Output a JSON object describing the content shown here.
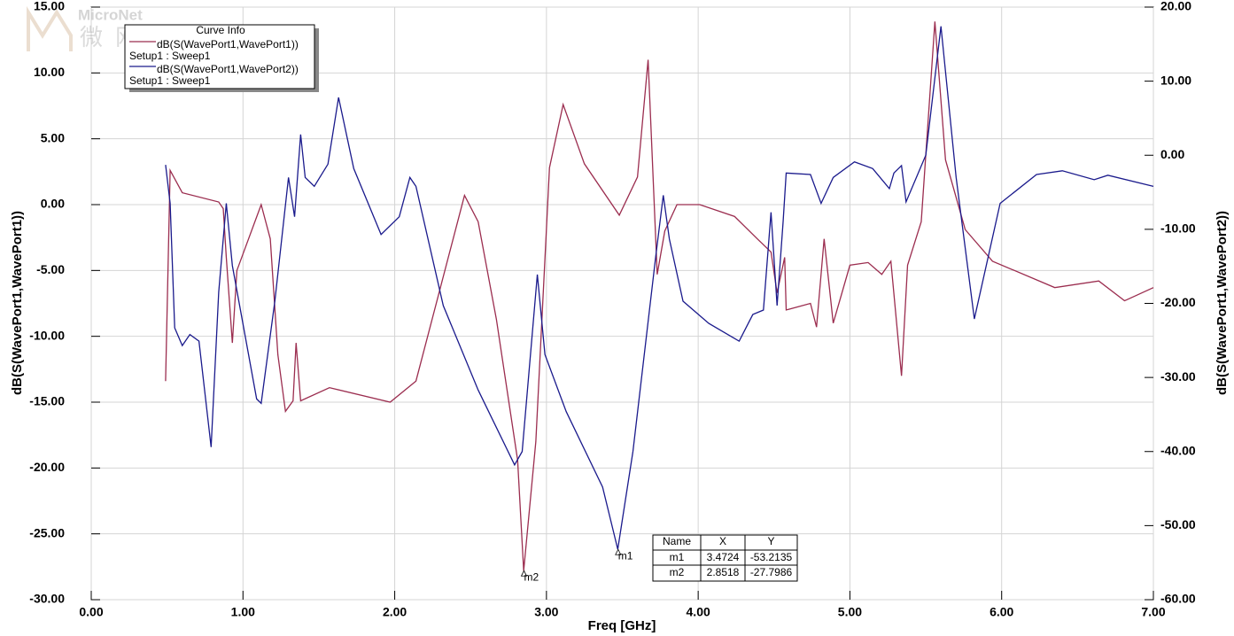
{
  "chart_data": {
    "type": "line",
    "watermark": "MicroNet",
    "watermark_cn": "微网",
    "legend_title": "Curve Info",
    "xlabel": "Freq [GHz]",
    "ylabel": "dB(S(WavePort1,WavePort1))",
    "y2label": "dB(S(WavePort1,WavePort2))",
    "xlim": [
      0,
      7
    ],
    "xticks": [
      {
        "value": 0,
        "label": "0.00"
      },
      {
        "value": 1,
        "label": "1.00"
      },
      {
        "value": 2,
        "label": "2.00"
      },
      {
        "value": 3,
        "label": "3.00"
      },
      {
        "value": 4,
        "label": "4.00"
      },
      {
        "value": 5,
        "label": "5.00"
      },
      {
        "value": 6,
        "label": "6.00"
      },
      {
        "value": 7,
        "label": "7.00"
      }
    ],
    "ylim": [
      -30,
      15
    ],
    "yticks": [
      {
        "value": -30,
        "label": "-30.00"
      },
      {
        "value": -25,
        "label": "-25.00"
      },
      {
        "value": -20,
        "label": "-20.00"
      },
      {
        "value": -15,
        "label": "-15.00"
      },
      {
        "value": -10,
        "label": "-10.00"
      },
      {
        "value": -5,
        "label": "-5.00"
      },
      {
        "value": 0,
        "label": "0.00"
      },
      {
        "value": 5,
        "label": "5.00"
      },
      {
        "value": 10,
        "label": "10.00"
      },
      {
        "value": 15,
        "label": "15.00"
      }
    ],
    "y2lim": [
      -60,
      20
    ],
    "y2ticks": [
      {
        "value": -60,
        "label": "-60.00"
      },
      {
        "value": -50,
        "label": "-50.00"
      },
      {
        "value": -40,
        "label": "-40.00"
      },
      {
        "value": -30,
        "label": "-30.00"
      },
      {
        "value": -20,
        "label": "-20.00"
      },
      {
        "value": -10,
        "label": "-10.00"
      },
      {
        "value": 0,
        "label": "0.00"
      },
      {
        "value": 10,
        "label": "10.00"
      },
      {
        "value": 20,
        "label": "20.00"
      }
    ],
    "grid": true,
    "series": [
      {
        "name": "dB(S(WavePort1,WavePort1))",
        "setup": "Setup1 : Sweep1",
        "color": "#9b2d4f",
        "axis": "y",
        "x": [
          0.49,
          0.52,
          0.6,
          0.84,
          0.87,
          0.89,
          0.93,
          0.96,
          1.12,
          1.18,
          1.23,
          1.28,
          1.33,
          1.35,
          1.38,
          1.57,
          1.97,
          2.14,
          2.46,
          2.55,
          2.67,
          2.81,
          2.85,
          2.93,
          3.02,
          3.11,
          3.25,
          3.48,
          3.6,
          3.67,
          3.73,
          3.78,
          3.86,
          4.01,
          4.24,
          4.39,
          4.48,
          4.52,
          4.57,
          4.58,
          4.74,
          4.78,
          4.83,
          4.89,
          5.0,
          5.12,
          5.21,
          5.27,
          5.34,
          5.38,
          5.47,
          5.56,
          5.63,
          5.76,
          5.94,
          6.35,
          6.64,
          6.81,
          7.0
        ],
        "values": [
          -13.4,
          2.6,
          0.9,
          0.2,
          -0.3,
          -4,
          -10.5,
          -5,
          0,
          -2.6,
          -11.4,
          -15.7,
          -14.9,
          -10.5,
          -14.9,
          -13.9,
          -15,
          -13.4,
          0.7,
          -1.3,
          -8.7,
          -19.4,
          -27.8,
          -18,
          2.8,
          7.6,
          3.1,
          -0.8,
          2.1,
          11,
          -5.3,
          -2,
          0,
          0,
          -0.9,
          -2.6,
          -3.6,
          -6.7,
          -4,
          -8,
          -7.5,
          -9.3,
          -2.6,
          -9,
          -4.6,
          -4.4,
          -5.3,
          -4.3,
          -13,
          -4.6,
          -1.3,
          13.9,
          3.4,
          -1.9,
          -4.3,
          -6.3,
          -5.8,
          -7.3,
          -6.3
        ]
      },
      {
        "name": "dB(S(WavePort1,WavePort2))",
        "setup": "Setup1 : Sweep1",
        "color": "#1a1a8c",
        "axis": "y2",
        "x": [
          0.49,
          0.52,
          0.55,
          0.6,
          0.65,
          0.71,
          0.79,
          0.84,
          0.89,
          0.93,
          1.09,
          1.12,
          1.21,
          1.3,
          1.34,
          1.38,
          1.41,
          1.47,
          1.56,
          1.63,
          1.73,
          1.91,
          2.03,
          2.1,
          2.14,
          2.32,
          2.55,
          2.79,
          2.84,
          2.94,
          2.99,
          3.13,
          3.37,
          3.47,
          3.57,
          3.72,
          3.77,
          3.81,
          3.9,
          4.07,
          4.27,
          4.36,
          4.43,
          4.48,
          4.52,
          4.56,
          4.58,
          4.74,
          4.81,
          4.89,
          5.03,
          5.15,
          5.26,
          5.29,
          5.34,
          5.37,
          5.5,
          5.6,
          5.7,
          5.82,
          5.99,
          6.23,
          6.4,
          6.61,
          6.7,
          7.0
        ],
        "values": [
          -1.3,
          -6.5,
          -23.3,
          -25.7,
          -24.2,
          -25.1,
          -39.4,
          -18.5,
          -6.5,
          -14.9,
          -32.9,
          -33.5,
          -19.7,
          -3,
          -8.3,
          2.8,
          -3,
          -4.2,
          -1.2,
          7.8,
          -1.8,
          -10.7,
          -8.3,
          -3,
          -4.2,
          -20.3,
          -31.7,
          -41.8,
          -40,
          -16.1,
          -26.9,
          -34.6,
          -44.8,
          -53.2,
          -40,
          -13.7,
          -5.4,
          -11.3,
          -19.7,
          -22.7,
          -25.1,
          -21.5,
          -20.9,
          -7.7,
          -20.3,
          -8.9,
          -2.4,
          -2.6,
          -6.5,
          -3,
          -0.9,
          -1.8,
          -4.5,
          -2.4,
          -1.4,
          -6.3,
          0,
          17.4,
          -3,
          -22.1,
          -6.5,
          -2.6,
          -2.1,
          -3.3,
          -2.7,
          -4.2
        ]
      }
    ],
    "marker_table_header": [
      "Name",
      "X",
      "Y"
    ],
    "markers": [
      {
        "name": "m1",
        "x": 3.4724,
        "y": -53.2135,
        "axis": "y2"
      },
      {
        "name": "m2",
        "x": 2.8518,
        "y": -27.7986,
        "axis": "y"
      }
    ]
  }
}
